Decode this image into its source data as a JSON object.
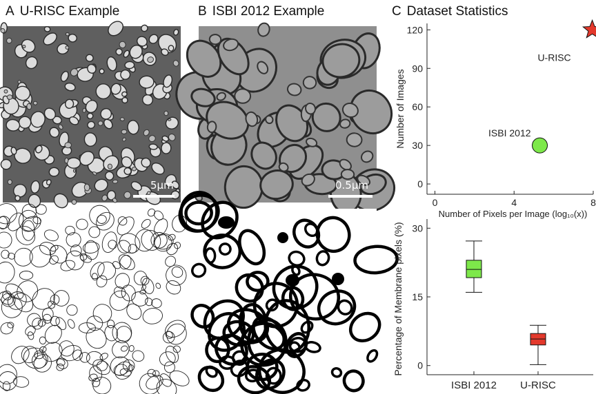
{
  "panels": {
    "a": {
      "letter": "A",
      "title": "U-RISC Example",
      "scale": "5μm"
    },
    "b": {
      "letter": "B",
      "title": "ISBI 2012 Example",
      "scale": "0.5μm"
    },
    "c": {
      "letter": "C",
      "title": "Dataset Statistics"
    }
  },
  "colors": {
    "isbi": "#7de84a",
    "urisc": "#e3392c"
  },
  "chart_data": [
    {
      "type": "scatter",
      "xlabel": "Number of Pixels per Image (log₁₀(x))",
      "ylabel": "Number of Images",
      "xlim": [
        -0.4,
        8.0
      ],
      "ylim": [
        -8,
        125
      ],
      "xticks": [
        0,
        4,
        8
      ],
      "yticks": [
        0,
        30,
        60,
        90,
        120
      ],
      "points": [
        {
          "name": "ISBI 2012",
          "x": 5.3,
          "y": 30,
          "marker": "circle",
          "color": "#7de84a"
        },
        {
          "name": "U-RISC",
          "x": 7.95,
          "y": 120,
          "marker": "star",
          "color": "#e3392c"
        }
      ]
    },
    {
      "type": "box",
      "ylabel": "Percentage of Membrane pixels (%)",
      "ylim": [
        -2,
        32
      ],
      "yticks": [
        0,
        15,
        30
      ],
      "categories": [
        "ISBI 2012",
        "U-RISC"
      ],
      "boxes": [
        {
          "name": "ISBI 2012",
          "min": 16,
          "q1": 19.2,
          "median": 21,
          "q3": 23,
          "max": 27.2,
          "color": "#7de84a"
        },
        {
          "name": "U-RISC",
          "min": 0.2,
          "q1": 4.5,
          "median": 5.8,
          "q3": 7,
          "max": 8.8,
          "color": "#e3392c"
        }
      ]
    }
  ]
}
